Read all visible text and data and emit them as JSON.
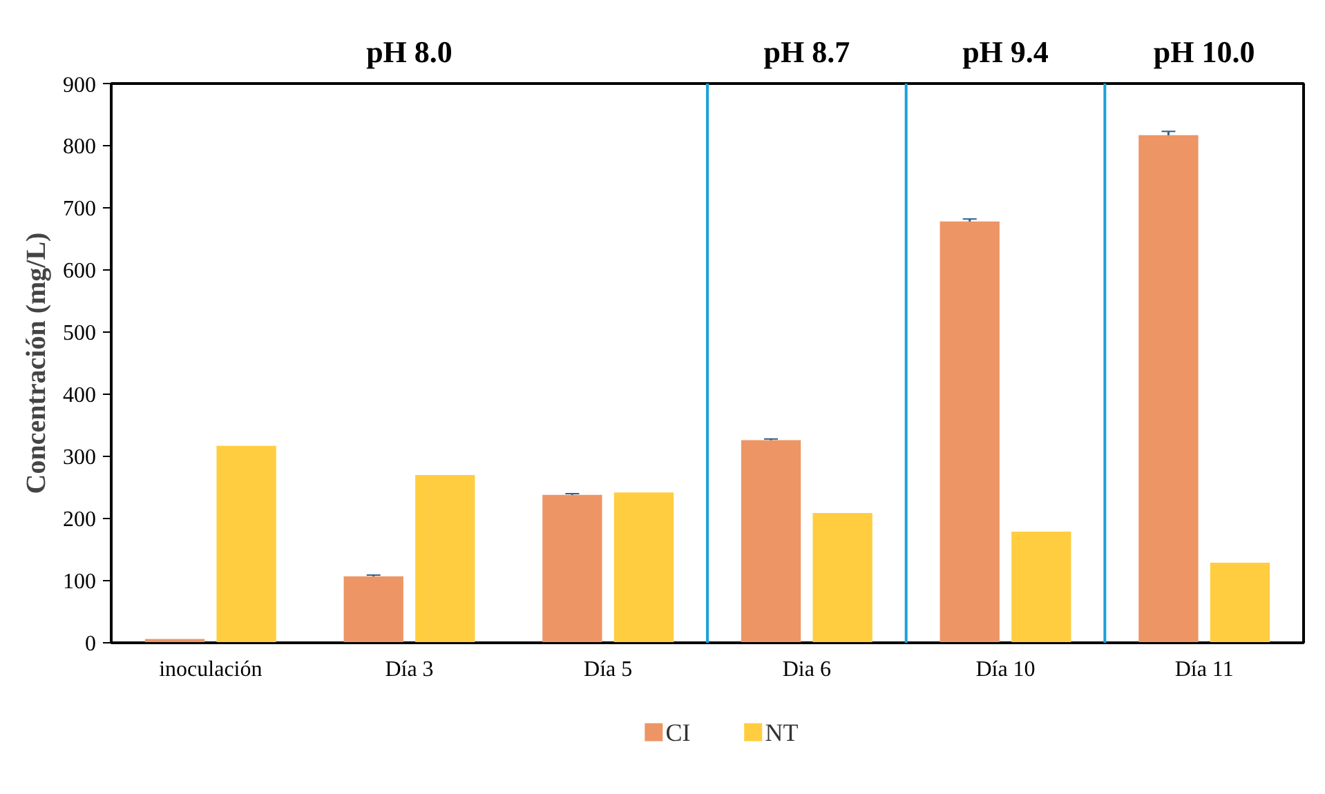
{
  "chart_data": {
    "type": "bar",
    "ylabel": "Concentración (mg/L)",
    "categories": [
      "inoculación",
      "Día 3",
      "Día 5",
      "Dia 6",
      "Día 10",
      "Día 11"
    ],
    "series": [
      {
        "name": "CI",
        "color": "#ed9565",
        "values": [
          6,
          107,
          238,
          326,
          678,
          817
        ],
        "errors": [
          null,
          2,
          2,
          2,
          4,
          6
        ]
      },
      {
        "name": "NT",
        "color": "#ffcd3f",
        "values": [
          317,
          270,
          242,
          209,
          179,
          129
        ]
      }
    ],
    "ylim": [
      0,
      900
    ],
    "yticks": [
      0,
      100,
      200,
      300,
      400,
      500,
      600,
      700,
      800,
      900
    ],
    "annotations": [
      "pH 8.0",
      "pH 8.7",
      "pH 9.4",
      "pH 10.0"
    ],
    "grid": false,
    "legend": "bottom"
  }
}
